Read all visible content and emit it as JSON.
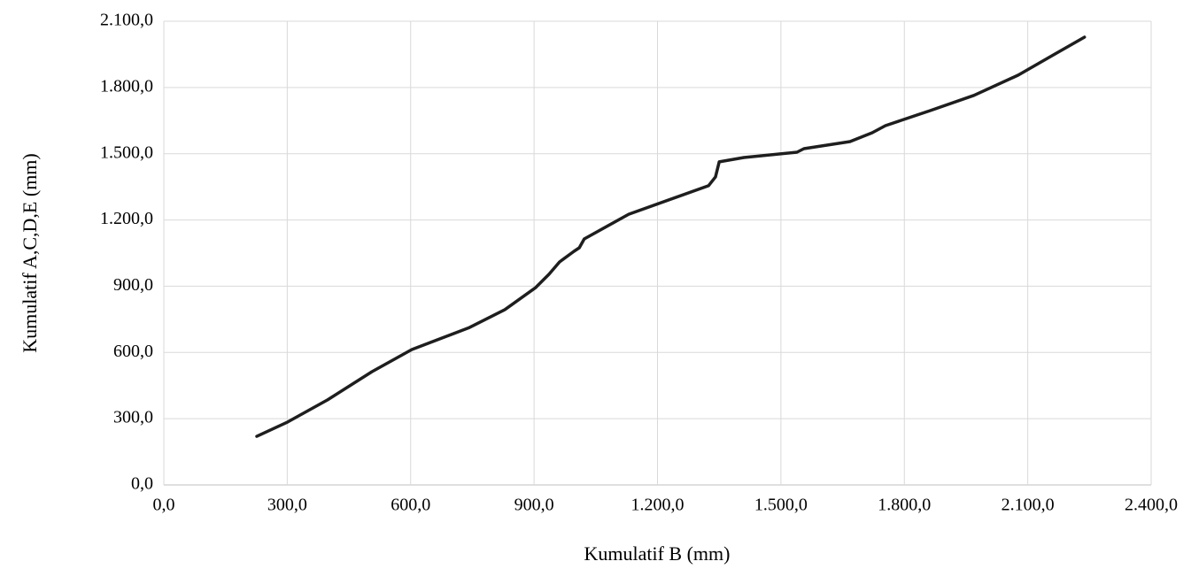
{
  "chart_data": {
    "type": "line",
    "x_label": "Kumulatif B (mm)",
    "y_label": "Kumulatif A,C,D,E (mm)",
    "xlim": [
      0,
      2400
    ],
    "ylim": [
      0,
      2100
    ],
    "xticks": [
      {
        "value": 0,
        "label": "0,0"
      },
      {
        "value": 300,
        "label": "300,0"
      },
      {
        "value": 600,
        "label": "600,0"
      },
      {
        "value": 900,
        "label": "900,0"
      },
      {
        "value": 1200,
        "label": "1.200,0"
      },
      {
        "value": 1500,
        "label": "1.500,0"
      },
      {
        "value": 1800,
        "label": "1.800,0"
      },
      {
        "value": 2100,
        "label": "2.100,0"
      },
      {
        "value": 2400,
        "label": "2.400,0"
      }
    ],
    "yticks": [
      {
        "value": 0,
        "label": "0,0"
      },
      {
        "value": 300,
        "label": "300,0"
      },
      {
        "value": 600,
        "label": "600,0"
      },
      {
        "value": 900,
        "label": "900,0"
      },
      {
        "value": 1200,
        "label": "1.200,0"
      },
      {
        "value": 1500,
        "label": "1.500,0"
      },
      {
        "value": 1800,
        "label": "1.800,0"
      },
      {
        "value": 2100,
        "label": "2.100,0"
      }
    ],
    "grid": true,
    "color": "#1e1e1e",
    "x": [
      226,
      301,
      398,
      506,
      603,
      743,
      829,
      904,
      936,
      962,
      997,
      1010,
      1022,
      1130,
      1324,
      1341,
      1350,
      1410,
      1539,
      1556,
      1668,
      1722,
      1754,
      1862,
      1969,
      2077,
      2163,
      2238
    ],
    "values": [
      220,
      285,
      385,
      513,
      613,
      713,
      794,
      894,
      954,
      1010,
      1058,
      1074,
      1114,
      1226,
      1355,
      1395,
      1463,
      1483,
      1507,
      1523,
      1555,
      1595,
      1627,
      1695,
      1764,
      1856,
      1948,
      2028
    ]
  }
}
